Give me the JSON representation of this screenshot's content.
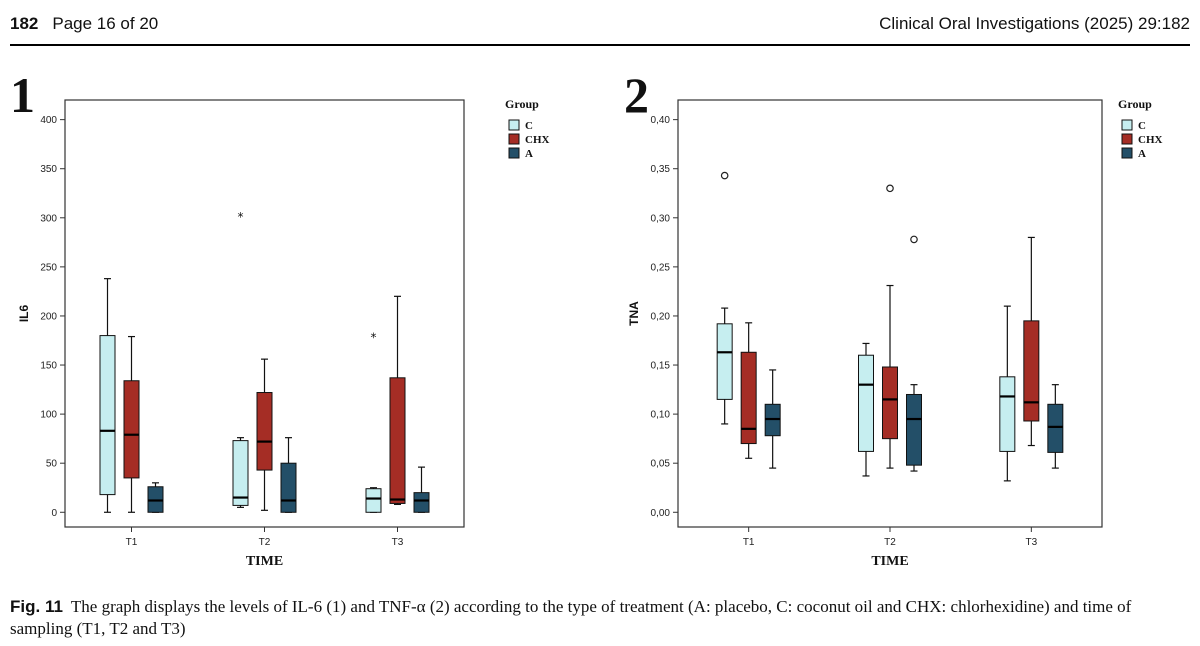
{
  "header": {
    "page_number": "182",
    "page_info": "Page 16 of 20",
    "journal": "Clinical Oral Investigations (2025) 29:182"
  },
  "colors": {
    "C": "#c6eef0",
    "CHX": "#a52d25",
    "A": "#234f68"
  },
  "chart_data": [
    {
      "panel_label": "1",
      "type": "boxplot",
      "xlabel": "TIME",
      "ylabel": "IL6",
      "ylim": [
        -15,
        420
      ],
      "yticks": [
        0,
        50,
        100,
        150,
        200,
        250,
        300,
        350,
        400
      ],
      "ytick_labels": [
        "0",
        "50",
        "100",
        "150",
        "200",
        "250",
        "300",
        "350",
        "400"
      ],
      "categories": [
        "T1",
        "T2",
        "T3"
      ],
      "legend_title": "Group",
      "groups": [
        "C",
        "CHX",
        "A"
      ],
      "boxes": [
        [
          {
            "min": 0,
            "q1": 18,
            "median": 83,
            "q3": 180,
            "max": 238,
            "outliers": [],
            "extremes": []
          },
          {
            "min": 0,
            "q1": 35,
            "median": 79,
            "q3": 134,
            "max": 179,
            "outliers": [],
            "extremes": []
          },
          {
            "min": 0,
            "q1": 0,
            "median": 12,
            "q3": 26,
            "max": 30,
            "outliers": [],
            "extremes": []
          }
        ],
        [
          {
            "min": 5,
            "q1": 7,
            "median": 15,
            "q3": 73,
            "max": 76,
            "outliers": [],
            "extremes": [
              302
            ]
          },
          {
            "min": 2,
            "q1": 43,
            "median": 72,
            "q3": 122,
            "max": 156,
            "outliers": [],
            "extremes": []
          },
          {
            "min": 0,
            "q1": 0,
            "median": 12,
            "q3": 50,
            "max": 76,
            "outliers": [],
            "extremes": []
          }
        ],
        [
          {
            "min": 0,
            "q1": 0,
            "median": 14,
            "q3": 24,
            "max": 25,
            "outliers": [],
            "extremes": [
              179
            ]
          },
          {
            "min": 8,
            "q1": 9,
            "median": 13,
            "q3": 137,
            "max": 220,
            "outliers": [],
            "extremes": []
          },
          {
            "min": 0,
            "q1": 0,
            "median": 12,
            "q3": 20,
            "max": 46,
            "outliers": [],
            "extremes": []
          }
        ]
      ]
    },
    {
      "panel_label": "2",
      "type": "boxplot",
      "xlabel": "TIME",
      "ylabel": "TNA",
      "ylim": [
        -0.015,
        0.42
      ],
      "yticks": [
        0,
        0.05,
        0.1,
        0.15,
        0.2,
        0.25,
        0.3,
        0.35,
        0.4
      ],
      "ytick_labels": [
        "0,00",
        "0,05",
        "0,10",
        "0,15",
        "0,20",
        "0,25",
        "0,30",
        "0,35",
        "0,40"
      ],
      "categories": [
        "T1",
        "T2",
        "T3"
      ],
      "legend_title": "Group",
      "groups": [
        "C",
        "CHX",
        "A"
      ],
      "boxes": [
        [
          {
            "min": 0.09,
            "q1": 0.115,
            "median": 0.163,
            "q3": 0.192,
            "max": 0.208,
            "outliers": [
              0.343
            ],
            "extremes": []
          },
          {
            "min": 0.055,
            "q1": 0.07,
            "median": 0.085,
            "q3": 0.163,
            "max": 0.193,
            "outliers": [],
            "extremes": []
          },
          {
            "min": 0.045,
            "q1": 0.078,
            "median": 0.095,
            "q3": 0.11,
            "max": 0.145,
            "outliers": [],
            "extremes": []
          }
        ],
        [
          {
            "min": 0.037,
            "q1": 0.062,
            "median": 0.13,
            "q3": 0.16,
            "max": 0.172,
            "outliers": [],
            "extremes": []
          },
          {
            "min": 0.045,
            "q1": 0.075,
            "median": 0.115,
            "q3": 0.148,
            "max": 0.231,
            "outliers": [
              0.33
            ],
            "extremes": []
          },
          {
            "min": 0.042,
            "q1": 0.048,
            "median": 0.095,
            "q3": 0.12,
            "max": 0.13,
            "outliers": [
              0.278
            ],
            "extremes": []
          }
        ],
        [
          {
            "min": 0.032,
            "q1": 0.062,
            "median": 0.118,
            "q3": 0.138,
            "max": 0.21,
            "outliers": [],
            "extremes": []
          },
          {
            "min": 0.068,
            "q1": 0.093,
            "median": 0.112,
            "q3": 0.195,
            "max": 0.28,
            "outliers": [],
            "extremes": []
          },
          {
            "min": 0.045,
            "q1": 0.061,
            "median": 0.087,
            "q3": 0.11,
            "max": 0.13,
            "outliers": [],
            "extremes": []
          }
        ]
      ]
    }
  ],
  "caption": {
    "label": "Fig. 11",
    "text": "The graph displays the levels of IL-6 (1) and TNF-α (2) according to the type of treatment (A: placebo, C: coconut oil and CHX: chlorhexidine) and time of sampling (T1, T2 and T3)"
  }
}
